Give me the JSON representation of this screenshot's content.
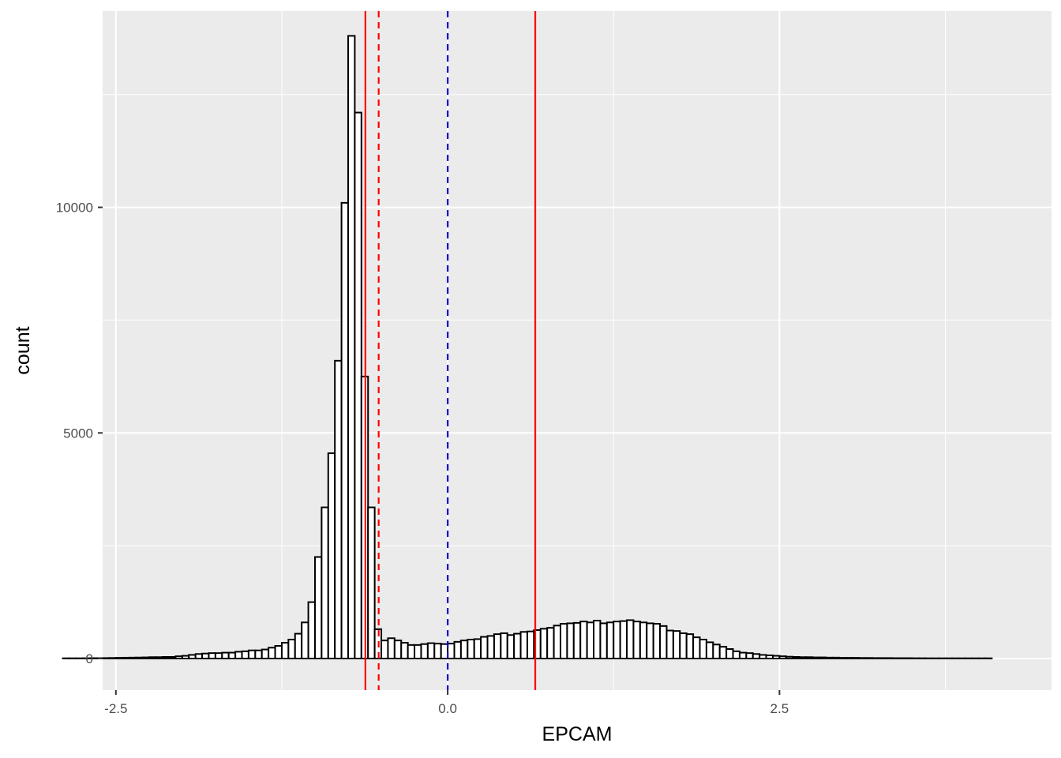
{
  "chart_data": {
    "type": "histogram",
    "title": "",
    "xlabel": "EPCAM",
    "ylabel": "count",
    "xlim": [
      -2.6,
      4.55
    ],
    "ylim": [
      -700,
      14350
    ],
    "grid": true,
    "x_ticks": [
      -2.5,
      0.0,
      2.5
    ],
    "x_tick_labels": [
      "-2.5",
      "0.0",
      "2.5"
    ],
    "y_ticks": [
      0,
      5000,
      10000
    ],
    "y_tick_labels": [
      "0",
      "5000",
      "10000"
    ],
    "bin_start": -2.9,
    "bin_width": 0.05,
    "counts": [
      5,
      5,
      5,
      5,
      8,
      8,
      10,
      12,
      15,
      18,
      20,
      22,
      25,
      30,
      30,
      35,
      35,
      50,
      60,
      80,
      100,
      110,
      120,
      120,
      130,
      130,
      150,
      160,
      180,
      180,
      200,
      240,
      280,
      350,
      420,
      550,
      800,
      1250,
      2250,
      3350,
      4550,
      6600,
      10100,
      13800,
      12100,
      6250,
      3350,
      650,
      400,
      450,
      400,
      350,
      300,
      300,
      320,
      340,
      330,
      320,
      330,
      370,
      400,
      420,
      430,
      480,
      500,
      540,
      560,
      520,
      550,
      590,
      600,
      630,
      660,
      680,
      730,
      770,
      780,
      790,
      820,
      800,
      840,
      780,
      800,
      820,
      830,
      850,
      820,
      800,
      780,
      770,
      720,
      620,
      610,
      560,
      540,
      470,
      420,
      360,
      310,
      260,
      210,
      160,
      130,
      120,
      100,
      80,
      70,
      60,
      50,
      40,
      35,
      30,
      30,
      25,
      25,
      20,
      20,
      15,
      15,
      15,
      12,
      12,
      10,
      10,
      10,
      8,
      8,
      8,
      6,
      6,
      5,
      5,
      5,
      5,
      5,
      5,
      5,
      5,
      5,
      5
    ],
    "bar_fill": "#ffffff",
    "bar_stroke": "#000000",
    "vlines": [
      {
        "x": -0.62,
        "color": "#ff0000",
        "style": "solid"
      },
      {
        "x": -0.52,
        "color": "#ff0000",
        "style": "dashed"
      },
      {
        "x": 0.0,
        "color": "#0000cc",
        "style": "dashed"
      },
      {
        "x": 0.66,
        "color": "#ff0000",
        "style": "solid"
      }
    ],
    "panel_background": "#ebebeb",
    "grid_color": "#ffffff"
  }
}
